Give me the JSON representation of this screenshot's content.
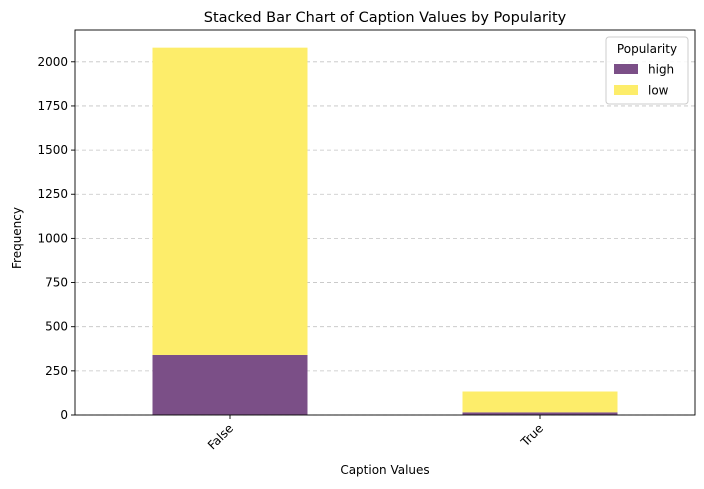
{
  "chart_data": {
    "type": "bar",
    "stacked": true,
    "title": "Stacked Bar Chart of Caption Values by Popularity",
    "xlabel": "Caption Values",
    "ylabel": "Frequency",
    "categories": [
      "False",
      "True"
    ],
    "series": [
      {
        "name": "high",
        "values": [
          340,
          15
        ],
        "color": "#7b4f87"
      },
      {
        "name": "low",
        "values": [
          1740,
          118
        ],
        "color": "#fded6a"
      }
    ],
    "ylim": [
      0,
      2180
    ],
    "yticks": [
      0,
      250,
      500,
      750,
      1000,
      1250,
      1500,
      1750,
      2000
    ],
    "grid": "y-dashed",
    "legend": {
      "title": "Popularity",
      "placement": "top-right"
    },
    "x_tick_rotation": 45
  }
}
